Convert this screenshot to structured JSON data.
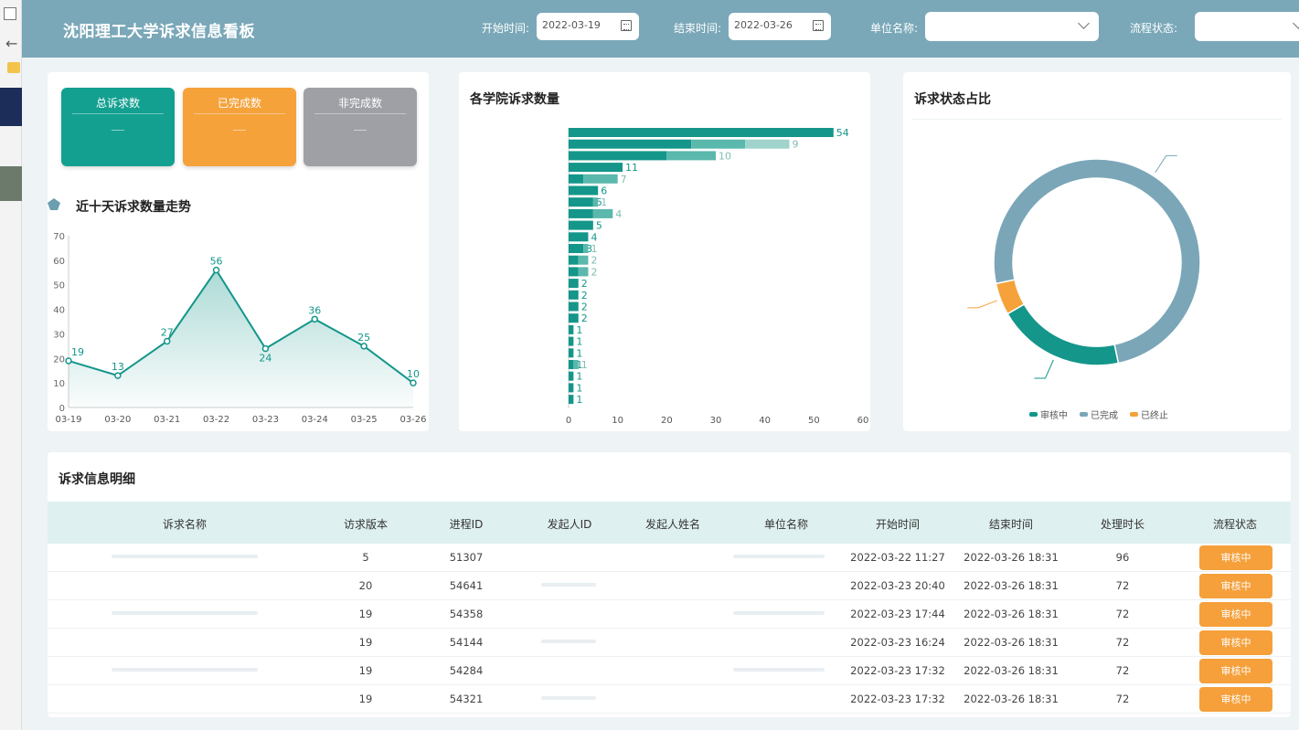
{
  "header": {
    "title": "沈阳理工大学诉求信息看板",
    "start_label": "开始时间:",
    "start_value": "2022-03-19",
    "end_label": "结束时间:",
    "end_value": "2022-03-26",
    "unit_label": "单位名称:",
    "status_label": "流程状态:"
  },
  "cards": [
    {
      "label": "总诉求数",
      "color": "#14a091"
    },
    {
      "label": "已完成数",
      "color": "#f5a23b"
    },
    {
      "label": "非完成数",
      "color": "#9ea0a6"
    }
  ],
  "trend": {
    "title": "近十天诉求数量走势"
  },
  "bar_panel": {
    "title": "各学院诉求数量"
  },
  "donut_panel": {
    "title": "诉求状态占比"
  },
  "table": {
    "title": "诉求信息明细",
    "columns": [
      "诉求名称",
      "访求版本",
      "进程ID",
      "发起人ID",
      "发起人姓名",
      "单位名称",
      "开始时间",
      "结束时间",
      "处理时长",
      "流程状态"
    ],
    "rows": [
      {
        "version": "5",
        "pid": "51307",
        "start": "2022-03-22  11:27",
        "end": "2022-03-26  18:31",
        "duration": "96",
        "status": "审核中"
      },
      {
        "version": "20",
        "pid": "54641",
        "start": "2022-03-23  20:40",
        "end": "2022-03-26  18:31",
        "duration": "72",
        "status": "审核中"
      },
      {
        "version": "19",
        "pid": "54358",
        "start": "2022-03-23  17:44",
        "end": "2022-03-26  18:31",
        "duration": "72",
        "status": "审核中"
      },
      {
        "version": "19",
        "pid": "54144",
        "start": "2022-03-23  16:24",
        "end": "2022-03-26  18:31",
        "duration": "72",
        "status": "审核中"
      },
      {
        "version": "19",
        "pid": "54284",
        "start": "2022-03-23  17:32",
        "end": "2022-03-26  18:31",
        "duration": "72",
        "status": "审核中"
      },
      {
        "version": "19",
        "pid": "54321",
        "start": "2022-03-23  17:32",
        "end": "2022-03-26  18:31",
        "duration": "72",
        "status": "审核中"
      }
    ]
  },
  "colors": {
    "teal": "#14968a",
    "light_teal": "#5bb8ac",
    "orange": "#f5a23b",
    "slate": "#7aa6b8",
    "header": "#7aa8b8"
  },
  "chart_data": [
    {
      "type": "line",
      "title": "近十天诉求数量走势",
      "x": [
        "03-19",
        "03-20",
        "03-21",
        "03-22",
        "03-23",
        "03-24",
        "03-25",
        "03-26"
      ],
      "series": [
        {
          "values": [
            19,
            13,
            27,
            56,
            24,
            36,
            25,
            10
          ]
        }
      ],
      "ylim": [
        0,
        70
      ],
      "yticks": [
        0,
        10,
        20,
        30,
        40,
        50,
        60,
        70
      ],
      "area_fill": true
    },
    {
      "type": "bar",
      "orientation": "horizontal",
      "stacked": true,
      "title": "各学院诉求数量",
      "xlim": [
        0,
        60
      ],
      "xticks": [
        0,
        10,
        20,
        30,
        40,
        50,
        60
      ],
      "rows": [
        {
          "segments": [
            54
          ]
        },
        {
          "segments": [
            25,
            11,
            9
          ]
        },
        {
          "segments": [
            20,
            10
          ]
        },
        {
          "segments": [
            11
          ]
        },
        {
          "segments": [
            3,
            7
          ]
        },
        {
          "segments": [
            6
          ]
        },
        {
          "segments": [
            5,
            1
          ]
        },
        {
          "segments": [
            5,
            4
          ]
        },
        {
          "segments": [
            5
          ]
        },
        {
          "segments": [
            4
          ]
        },
        {
          "segments": [
            3,
            1
          ]
        },
        {
          "segments": [
            2,
            2
          ]
        },
        {
          "segments": [
            2,
            2
          ]
        },
        {
          "segments": [
            2
          ]
        },
        {
          "segments": [
            2
          ]
        },
        {
          "segments": [
            2
          ]
        },
        {
          "segments": [
            2
          ]
        },
        {
          "segments": [
            1
          ]
        },
        {
          "segments": [
            1
          ]
        },
        {
          "segments": [
            1
          ]
        },
        {
          "segments": [
            1,
            1
          ]
        },
        {
          "segments": [
            1
          ]
        },
        {
          "segments": [
            1
          ]
        },
        {
          "segments": [
            1
          ]
        }
      ]
    },
    {
      "type": "pie",
      "donut": true,
      "title": "诉求状态占比",
      "slices": [
        {
          "name": "审核中",
          "value": 20,
          "color": "#14968a"
        },
        {
          "name": "已完成",
          "value": 75,
          "color": "#7aa6b8"
        },
        {
          "name": "已终止",
          "value": 5,
          "color": "#f5a23b"
        }
      ],
      "legend_position": "bottom"
    }
  ]
}
